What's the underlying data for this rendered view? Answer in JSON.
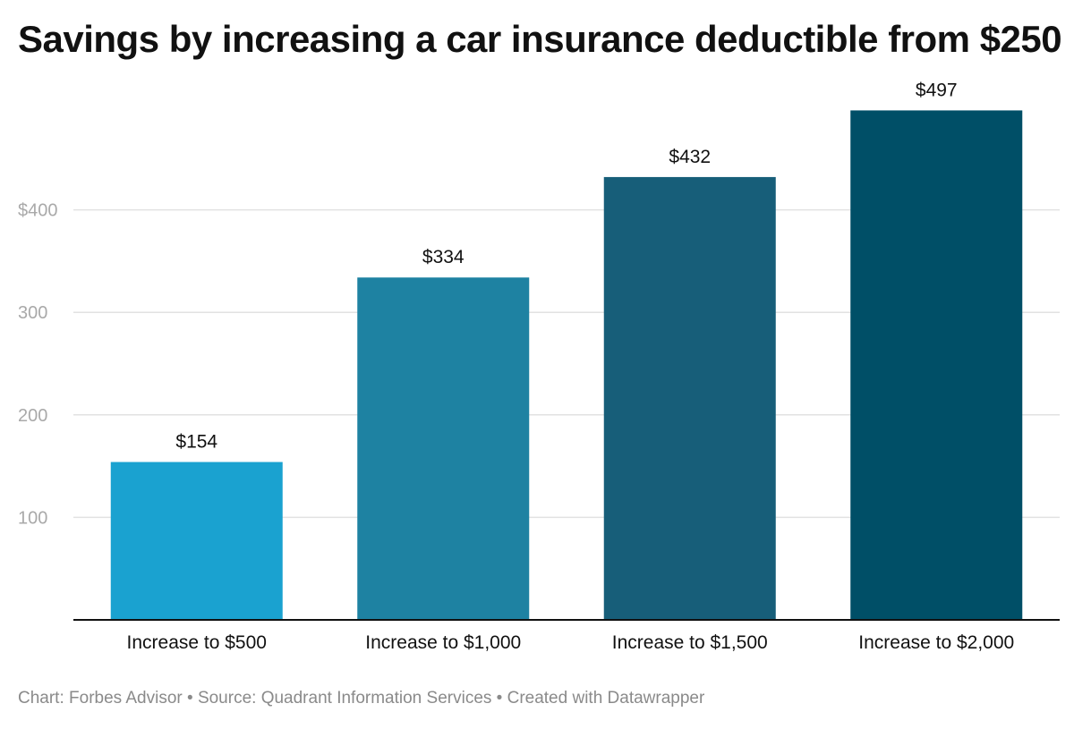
{
  "chart_data": {
    "type": "bar",
    "title": "Savings by increasing a car insurance deductible from $250",
    "categories": [
      "Increase to $500",
      "Increase to $1,000",
      "Increase to $1,500",
      "Increase to $2,000"
    ],
    "values": [
      154,
      334,
      432,
      497
    ],
    "value_labels": [
      "$154",
      "$334",
      "$432",
      "$497"
    ],
    "bar_colors": [
      "#1aa2d0",
      "#1e82a2",
      "#175e79",
      "#004f67"
    ],
    "ylim": [
      0,
      500
    ],
    "y_ticks": [
      100,
      200,
      300,
      400
    ],
    "y_tick_labels": [
      "100",
      "200",
      "300",
      "$400"
    ],
    "grid": true,
    "xlabel": "",
    "ylabel": ""
  },
  "footer": {
    "text": "Chart: Forbes Advisor • Source: Quadrant Information Services • Created with Datawrapper"
  }
}
